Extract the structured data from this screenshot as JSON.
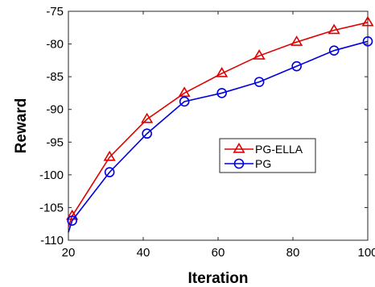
{
  "chart_data": {
    "type": "line",
    "xlabel": "Iteration",
    "ylabel": "Reward",
    "xlim": [
      20,
      100
    ],
    "ylim": [
      -110,
      -75
    ],
    "xticks": [
      20,
      40,
      60,
      80,
      100
    ],
    "yticks": [
      -110,
      -105,
      -100,
      -95,
      -90,
      -85,
      -80,
      -75
    ],
    "grid": false,
    "legend_position": "center-right",
    "series": [
      {
        "name": "PG-ELLA",
        "color": "#e00000",
        "marker": "triangle",
        "x": [
          20,
          21,
          31,
          41,
          51,
          61,
          71,
          81,
          91,
          100
        ],
        "y": [
          -108,
          -106.3,
          -97.3,
          -91.5,
          -87.5,
          -84.5,
          -81.8,
          -79.7,
          -77.9,
          -76.7
        ]
      },
      {
        "name": "PG",
        "color": "#0000e0",
        "marker": "circle",
        "x": [
          20,
          21,
          31,
          41,
          51,
          61,
          71,
          81,
          91,
          100
        ],
        "y": [
          -108.8,
          -107,
          -99.6,
          -93.7,
          -88.8,
          -87.5,
          -85.8,
          -83.4,
          -81.0,
          -79.6
        ]
      }
    ]
  }
}
